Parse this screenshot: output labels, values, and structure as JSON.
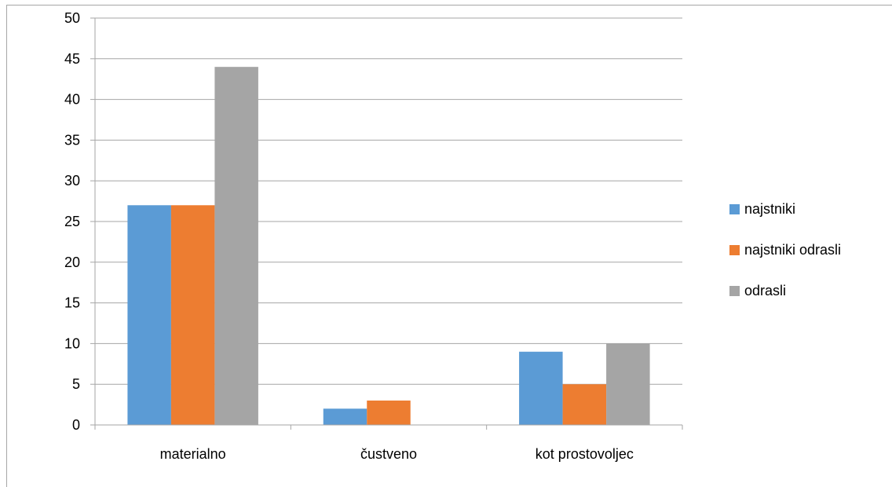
{
  "chart_data": {
    "type": "bar",
    "categories": [
      "materialno",
      "čustveno",
      "kot prostovoljec"
    ],
    "series": [
      {
        "name": "najstniki",
        "values": [
          27,
          2,
          9
        ],
        "color": "#5b9bd5"
      },
      {
        "name": "najstniki odrasli",
        "values": [
          27,
          3,
          5
        ],
        "color": "#ed7d31"
      },
      {
        "name": "odrasli",
        "values": [
          44,
          0,
          10
        ],
        "color": "#a5a5a5"
      }
    ],
    "title": "",
    "xlabel": "",
    "ylabel": "",
    "ylim": [
      0,
      50
    ],
    "yticks": [
      "0",
      "5",
      "10",
      "15",
      "20",
      "25",
      "30",
      "35",
      "40",
      "45",
      "50"
    ],
    "grid": true,
    "legend_position": "right"
  }
}
